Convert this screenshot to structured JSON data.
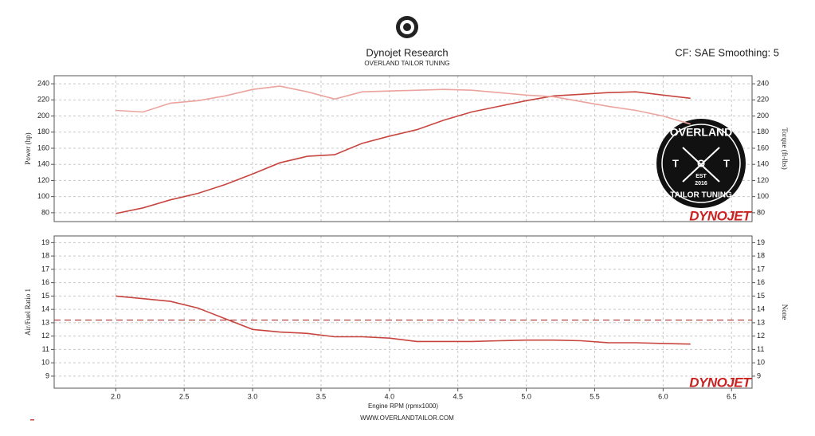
{
  "chart_data": [
    {
      "type": "line",
      "title": "Dynojet Research",
      "subtitle": "OVERLAND TAILOR TUNING",
      "annotation": "CF: SAE Smoothing: 5",
      "y_label": "Power (hp)",
      "y2_label": "Torque (ft-lbs)",
      "watermark": "DYNOJET",
      "logo_text": [
        "OVERLAND",
        "T",
        "O",
        "T",
        "EST",
        "2016",
        "TAILOR TUNING"
      ],
      "x": [
        2.0,
        2.2,
        2.4,
        2.6,
        2.8,
        3.0,
        3.2,
        3.4,
        3.6,
        3.8,
        4.0,
        4.2,
        4.4,
        4.6,
        4.8,
        5.0,
        5.2,
        5.4,
        5.6,
        5.8,
        6.0,
        6.2
      ],
      "xlim": [
        1.55,
        6.65
      ],
      "xticks": [
        2,
        2.5,
        3,
        3.5,
        4,
        4.5,
        5,
        5.5,
        6,
        6.5
      ],
      "ylim": [
        69,
        250
      ],
      "yticks": [
        80,
        100,
        120,
        140,
        160,
        180,
        200,
        220,
        240
      ],
      "y2lim": [
        69,
        250
      ],
      "y2ticks": [
        80,
        100,
        120,
        140,
        160,
        180,
        200,
        220,
        240
      ],
      "grid": true,
      "series": [
        {
          "color": "#c8453f",
          "values": [
            79,
            86,
            96,
            104,
            115,
            128,
            142,
            150,
            152,
            166,
            175,
            183,
            195,
            205,
            212,
            219,
            225,
            227,
            229,
            230,
            226,
            222
          ]
        },
        {
          "color": "#eba39d",
          "axis": "y2",
          "values": [
            207,
            205,
            216,
            219,
            225,
            233,
            237,
            230,
            221,
            230,
            231,
            232,
            233,
            232,
            229,
            226,
            224,
            218,
            212,
            207,
            200,
            190
          ]
        }
      ]
    },
    {
      "type": "line",
      "y_label": "Air/Fuel Ratio 1",
      "y2_label": "None",
      "x_label": "Engine RPM (rpmx1000)",
      "footer": "WWW.OVERLANDTAILOR.COM",
      "watermark": "DYNOJET",
      "x": [
        2.0,
        2.2,
        2.4,
        2.6,
        2.8,
        3.0,
        3.2,
        3.4,
        3.6,
        3.8,
        4.0,
        4.2,
        4.4,
        4.6,
        4.8,
        5.0,
        5.2,
        5.4,
        5.6,
        5.8,
        6.0,
        6.2
      ],
      "xlim": [
        1.55,
        6.65
      ],
      "xticks": [
        {
          "value": 2,
          "label": "2.0"
        },
        2.5,
        {
          "value": 3,
          "label": "3.0"
        },
        3.5,
        {
          "value": 4,
          "label": "4.0"
        },
        4.5,
        {
          "value": 5,
          "label": "5.0"
        },
        5.5,
        {
          "value": 6,
          "label": "6.0"
        },
        6.5
      ],
      "ylim": [
        8.1,
        19.5
      ],
      "yticks": [
        9,
        10,
        11,
        12,
        13,
        14,
        15,
        16,
        17,
        18,
        19
      ],
      "y2lim": [
        8.1,
        19.5
      ],
      "y2ticks": [
        9,
        10,
        11,
        12,
        13,
        14,
        15,
        16,
        17,
        18,
        19
      ],
      "grid": true,
      "reference_line": 13.2,
      "reference_color": "#b03030",
      "series": [
        {
          "color": "#c8453f",
          "values": [
            15.0,
            14.8,
            14.6,
            14.1,
            13.3,
            12.5,
            12.3,
            12.2,
            11.95,
            11.95,
            11.85,
            11.6,
            11.6,
            11.6,
            11.65,
            11.7,
            11.7,
            11.65,
            11.5,
            11.5,
            11.45,
            11.4
          ]
        }
      ]
    }
  ]
}
